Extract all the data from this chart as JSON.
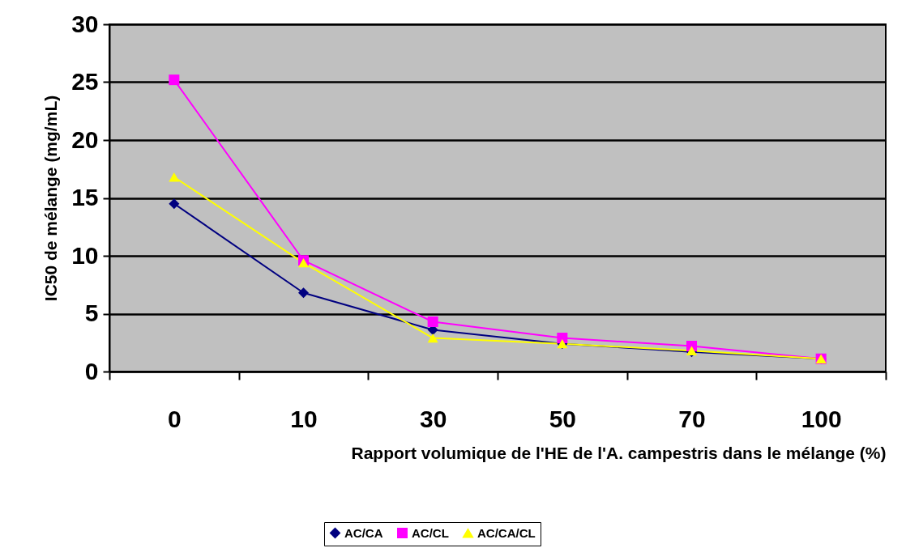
{
  "chart_data": {
    "type": "line",
    "xlabel": "Rapport volumique de l'HE de l'A. campestris dans le mélange (%)",
    "ylabel": "IC50 de mélange (mg/mL)",
    "categories": [
      "0",
      "10",
      "30",
      "50",
      "70",
      "100"
    ],
    "series": [
      {
        "name": "AC/CA",
        "color": "#000080",
        "marker": "diamond",
        "values": [
          14.5,
          6.8,
          3.6,
          2.4,
          1.7,
          1.1
        ]
      },
      {
        "name": "AC/CL",
        "color": "#ff00ff",
        "marker": "square",
        "values": [
          25.2,
          9.6,
          4.3,
          2.9,
          2.2,
          1.1
        ]
      },
      {
        "name": "AC/CA/CL",
        "color": "#ffff00",
        "marker": "triangle",
        "values": [
          16.8,
          9.4,
          2.9,
          2.4,
          1.8,
          1.1
        ]
      }
    ],
    "ylim": [
      0,
      30
    ],
    "yticks": [
      0,
      5,
      10,
      15,
      20,
      25,
      30
    ],
    "grid": "y",
    "legend": "bottom"
  }
}
